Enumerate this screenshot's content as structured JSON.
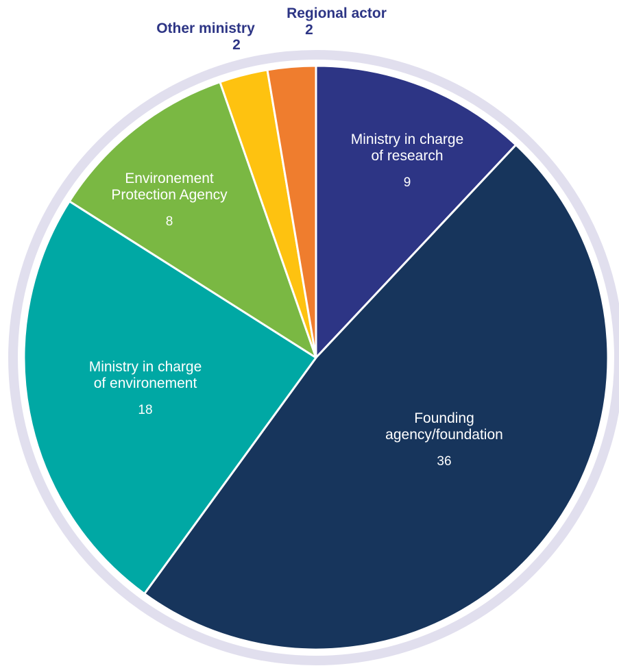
{
  "chart_data": {
    "type": "pie",
    "title": "",
    "start": "12 o'clock, clockwise",
    "ring_color": "#e1dfee",
    "divider_color": "#ffffff",
    "slices": [
      {
        "key": "ministry-research",
        "label_lines": [
          "Ministry in charge",
          "of research"
        ],
        "value": 9,
        "value_text": "9",
        "color": "#2d3585",
        "text_color": "#ffffff",
        "label_placement": "inside"
      },
      {
        "key": "founding-agency",
        "label_lines": [
          "Founding",
          "agency/foundation"
        ],
        "value": 36,
        "value_text": "36",
        "color": "#17355c",
        "text_color": "#ffffff",
        "label_placement": "inside"
      },
      {
        "key": "ministry-environment",
        "label_lines": [
          "Ministry in charge",
          "of environement"
        ],
        "value": 18,
        "value_text": "18",
        "color": "#00a8a4",
        "text_color": "#ffffff",
        "label_placement": "inside"
      },
      {
        "key": "epa",
        "label_lines": [
          "Environement",
          "Protection Agency"
        ],
        "value": 8,
        "value_text": "8",
        "color": "#7ab843",
        "text_color": "#ffffff",
        "label_placement": "inside"
      },
      {
        "key": "other-ministry",
        "label_lines": [
          "Other ministry"
        ],
        "value": 2,
        "value_text": "2",
        "color": "#fec210",
        "text_color": "#2d3585",
        "label_placement": "outside"
      },
      {
        "key": "regional-actor",
        "label_lines": [
          "Regional actor"
        ],
        "value": 2,
        "value_text": "2",
        "color": "#ef7d2e",
        "text_color": "#2d3585",
        "label_placement": "outside"
      }
    ]
  }
}
